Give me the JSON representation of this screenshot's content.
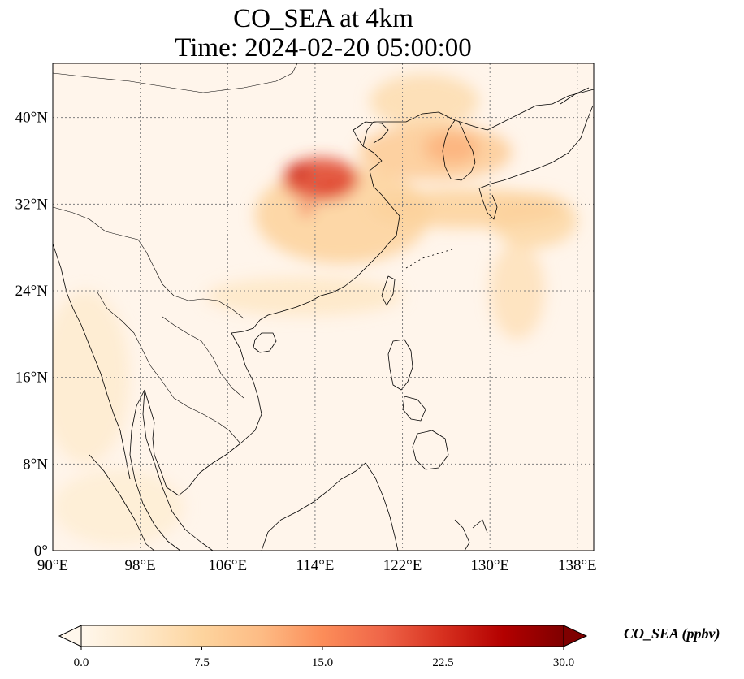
{
  "title": {
    "line1": "CO_SEA at 4km",
    "line2": "Time: 2024-02-20 05:00:00"
  },
  "map": {
    "projection": "PlateCarree",
    "extent": {
      "lon_min": 90,
      "lon_max": 139.5,
      "lat_min": 0,
      "lat_max": 45
    },
    "gridlines": {
      "style": "dotted",
      "color": "#808080"
    },
    "x_ticks": [
      {
        "value": 90,
        "label": "90°E"
      },
      {
        "value": 98,
        "label": "98°E"
      },
      {
        "value": 106,
        "label": "106°E"
      },
      {
        "value": 114,
        "label": "114°E"
      },
      {
        "value": 122,
        "label": "122°E"
      },
      {
        "value": 130,
        "label": "130°E"
      },
      {
        "value": 138,
        "label": "138°E"
      }
    ],
    "y_ticks": [
      {
        "value": 0,
        "label": "0°"
      },
      {
        "value": 8,
        "label": "8°N"
      },
      {
        "value": 16,
        "label": "16°N"
      },
      {
        "value": 24,
        "label": "24°N"
      },
      {
        "value": 32,
        "label": "32°N"
      },
      {
        "value": 40,
        "label": "40°N"
      }
    ],
    "background_color": "#fff5eb",
    "coastline_color": "#000000",
    "plumes": [
      {
        "name": "north-china-core",
        "lon": 114.5,
        "lat": 34.3,
        "rx_deg": 3.5,
        "ry_deg": 2.0,
        "value": 21
      },
      {
        "name": "north-china-spot-1",
        "lon": 112.5,
        "lat": 35.0,
        "rx_deg": 1.0,
        "ry_deg": 0.6,
        "value": 24
      },
      {
        "name": "north-china-spot-2",
        "lon": 115.5,
        "lat": 33.5,
        "rx_deg": 1.2,
        "ry_deg": 0.6,
        "value": 21
      },
      {
        "name": "north-china-spot-3",
        "lon": 113.2,
        "lat": 31.5,
        "rx_deg": 0.7,
        "ry_deg": 0.5,
        "value": 18
      },
      {
        "name": "north-china-broad",
        "lon": 116.5,
        "lat": 31.0,
        "rx_deg": 8.0,
        "ry_deg": 4.5,
        "value": 8
      },
      {
        "name": "bohai-korea-band",
        "lon": 125.0,
        "lat": 36.8,
        "rx_deg": 7.0,
        "ry_deg": 2.6,
        "value": 9
      },
      {
        "name": "korea-core",
        "lon": 126.5,
        "lat": 37.2,
        "rx_deg": 2.5,
        "ry_deg": 1.5,
        "value": 12
      },
      {
        "name": "manchuria",
        "lon": 124.0,
        "lat": 41.5,
        "rx_deg": 5.0,
        "ry_deg": 2.5,
        "value": 6
      },
      {
        "name": "yellow-sea-to-japan",
        "lon": 128.0,
        "lat": 31.6,
        "rx_deg": 9.0,
        "ry_deg": 1.8,
        "value": 8
      },
      {
        "name": "outflow-east",
        "lon": 134.0,
        "lat": 30.5,
        "rx_deg": 4.0,
        "ry_deg": 2.5,
        "value": 7
      },
      {
        "name": "outflow-tail",
        "lon": 132.5,
        "lat": 24.0,
        "rx_deg": 2.5,
        "ry_deg": 4.5,
        "value": 5
      },
      {
        "name": "south-china-coast",
        "lon": 113.0,
        "lat": 23.5,
        "rx_deg": 9.0,
        "ry_deg": 1.8,
        "value": 4
      },
      {
        "name": "indochina-west",
        "lon": 93.0,
        "lat": 16.0,
        "rx_deg": 4.0,
        "ry_deg": 8.0,
        "value": 3
      },
      {
        "name": "tropical-west",
        "lon": 96.0,
        "lat": 4.0,
        "rx_deg": 6.0,
        "ry_deg": 3.5,
        "value": 2.5
      }
    ]
  },
  "colorbar": {
    "label": "CO_SEA (ppbv)",
    "vmin": 0.0,
    "vmax": 30.0,
    "extend": "both",
    "cmap": "OrRd",
    "stops": [
      "#fff7ec",
      "#fee8c8",
      "#fdd49e",
      "#fdbb84",
      "#fc8d59",
      "#ef6548",
      "#d7301f",
      "#b30000",
      "#7f0000"
    ],
    "ticks": [
      {
        "value": 0.0,
        "label": "0.0"
      },
      {
        "value": 7.5,
        "label": "7.5"
      },
      {
        "value": 15.0,
        "label": "15.0"
      },
      {
        "value": 22.5,
        "label": "22.5"
      },
      {
        "value": 30.0,
        "label": "30.0"
      }
    ]
  }
}
